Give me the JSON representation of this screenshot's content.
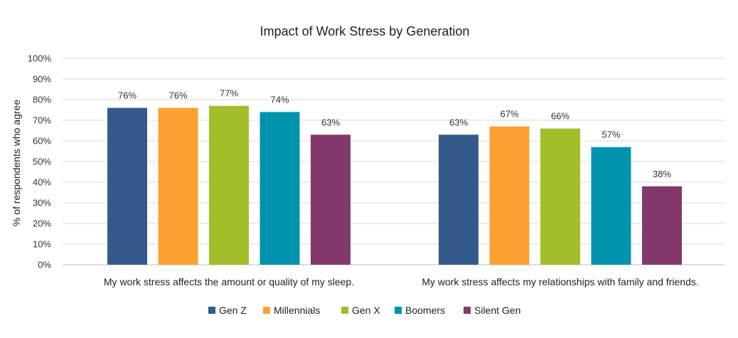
{
  "chart_data": {
    "type": "bar",
    "title": "Impact of Work Stress by Generation",
    "ylabel": "% of respondents who agree",
    "xlabel": "",
    "ylim": [
      0,
      100
    ],
    "yticks": [
      "0%",
      "10%",
      "20%",
      "30%",
      "40%",
      "50%",
      "60%",
      "70%",
      "80%",
      "90%",
      "100%"
    ],
    "categories": [
      "My work stress affects the amount or quality of my sleep.",
      "My work stress affects my relationships with family and friends."
    ],
    "series": [
      {
        "name": "Gen Z",
        "color": "#345a8c",
        "values": [
          76,
          63
        ],
        "labels": [
          "76%",
          "63%"
        ]
      },
      {
        "name": "Millennials",
        "color": "#fba233",
        "values": [
          76,
          67
        ],
        "labels": [
          "76%",
          "67%"
        ]
      },
      {
        "name": "Gen X",
        "color": "#a0bf2b",
        "values": [
          77,
          66
        ],
        "labels": [
          "77%",
          "66%"
        ]
      },
      {
        "name": "Boomers",
        "color": "#0093ad",
        "values": [
          74,
          57
        ],
        "labels": [
          "74%",
          "57%"
        ]
      },
      {
        "name": "Silent Gen",
        "color": "#82386a",
        "values": [
          63,
          38
        ],
        "labels": [
          "63%",
          "38%"
        ]
      }
    ],
    "grid": true,
    "legend": "bottom"
  }
}
